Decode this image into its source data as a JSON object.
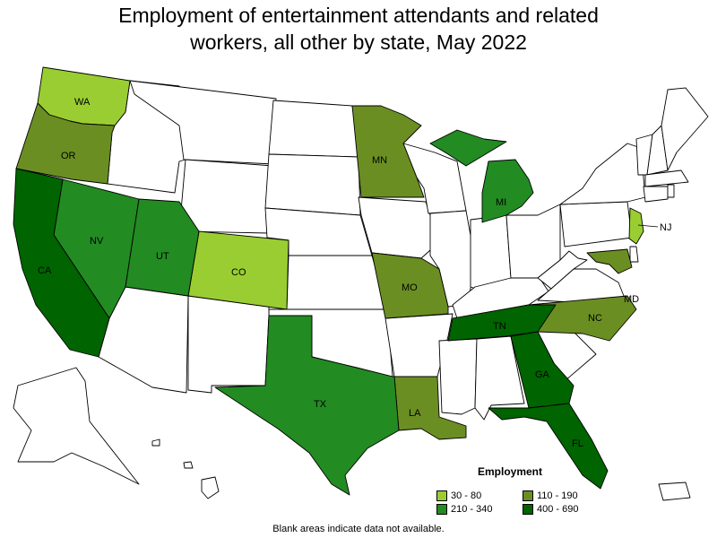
{
  "title_line1": "Employment of entertainment attendants and related",
  "title_line2": "workers, all other by state, May 2022",
  "legend": {
    "title": "Employment",
    "items": [
      {
        "label": "30 - 80",
        "color": "#9acd32"
      },
      {
        "label": "110 - 190",
        "color": "#6b8e23"
      },
      {
        "label": "210 - 340",
        "color": "#228b22"
      },
      {
        "label": "400 - 690",
        "color": "#006400"
      }
    ]
  },
  "states": [
    {
      "abbr": "WA",
      "class": "30 - 80"
    },
    {
      "abbr": "CO",
      "class": "30 - 80"
    },
    {
      "abbr": "NJ",
      "class": "30 - 80"
    },
    {
      "abbr": "OR",
      "class": "110 - 190"
    },
    {
      "abbr": "MN",
      "class": "110 - 190"
    },
    {
      "abbr": "MO",
      "class": "110 - 190"
    },
    {
      "abbr": "LA",
      "class": "110 - 190"
    },
    {
      "abbr": "NC",
      "class": "110 - 190"
    },
    {
      "abbr": "MD",
      "class": "110 - 190"
    },
    {
      "abbr": "NV",
      "class": "210 - 340"
    },
    {
      "abbr": "UT",
      "class": "210 - 340"
    },
    {
      "abbr": "TX",
      "class": "210 - 340"
    },
    {
      "abbr": "MI",
      "class": "210 - 340"
    },
    {
      "abbr": "CA",
      "class": "400 - 690"
    },
    {
      "abbr": "TN",
      "class": "400 - 690"
    },
    {
      "abbr": "GA",
      "class": "400 - 690"
    },
    {
      "abbr": "FL",
      "class": "400 - 690"
    }
  ],
  "footer": "Blank areas indicate data not available."
}
